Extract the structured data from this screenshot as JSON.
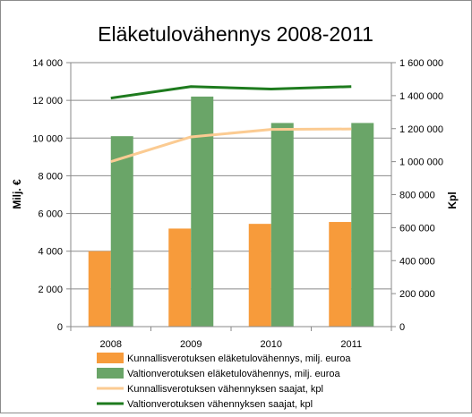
{
  "chart_data": {
    "type": "bar",
    "title": "Eläketulovähennys 2008-2011",
    "categories": [
      "2008",
      "2009",
      "2010",
      "2011"
    ],
    "ylabel": "Milj. €",
    "y2label": "Kpl",
    "ylim": [
      0,
      14000
    ],
    "y2lim": [
      0,
      1600000
    ],
    "yticks": [
      "0",
      "2 000",
      "4 000",
      "6 000",
      "8 000",
      "10 000",
      "12 000",
      "14 000"
    ],
    "y2ticks": [
      "0",
      "200 000",
      "400 000",
      "600 000",
      "800 000",
      "1 000 000",
      "1 200 000",
      "1 400 000",
      "1 600 000"
    ],
    "grid": true,
    "legend_position": "bottom",
    "bar_series": [
      {
        "name": "Kunnallisverotuksen eläketulovähennys, milj. euroa",
        "color": "#f79b3b",
        "axis": "left",
        "values": [
          4000,
          5200,
          5450,
          5550
        ]
      },
      {
        "name": "Valtionverotuksen eläketulovähennys, milj. euroa",
        "color": "#6aa568",
        "axis": "left",
        "values": [
          10100,
          12200,
          10800,
          10800
        ]
      }
    ],
    "line_series": [
      {
        "name": "Kunnallisverotuksen vähennyksen saajat, kpl",
        "color": "#fbcb92",
        "axis": "right",
        "values": [
          1000000,
          1150000,
          1195000,
          1198000
        ]
      },
      {
        "name": "Valtionverotuksen vähennyksen saajat, kpl",
        "color": "#1e7b1e",
        "axis": "right",
        "values": [
          1385000,
          1455000,
          1440000,
          1455000
        ]
      }
    ]
  }
}
